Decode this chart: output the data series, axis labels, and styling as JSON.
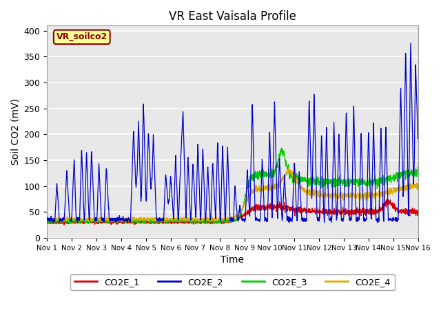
{
  "title": "VR East Vaisala Profile",
  "xlabel": "Time",
  "ylabel": "Soil CO2 (mV)",
  "ylim": [
    0,
    410
  ],
  "xlim": [
    0,
    15
  ],
  "background_color": "#e8e8e8",
  "figure_color": "#ffffff",
  "label_box_text": "VR_soilco2",
  "label_box_bg": "#ffff99",
  "label_box_edge": "#880000",
  "xtick_labels": [
    "Nov 1",
    "Nov 2",
    "Nov 3",
    "Nov 4",
    "Nov 5",
    "Nov 6",
    "Nov 7",
    "Nov 8",
    "Nov 9",
    "Nov 10",
    "Nov 11",
    "Nov 12",
    "Nov 13",
    "Nov 14",
    "Nov 15",
    "Nov 16"
  ],
  "ytick_vals": [
    0,
    50,
    100,
    150,
    200,
    250,
    300,
    350,
    400
  ],
  "colors": {
    "CO2E_1": "#dd0000",
    "CO2E_2": "#0000cc",
    "CO2E_3": "#00cc00",
    "CO2E_4": "#ddaa00"
  },
  "legend_labels": [
    "CO2E_1",
    "CO2E_2",
    "CO2E_3",
    "CO2E_4"
  ]
}
